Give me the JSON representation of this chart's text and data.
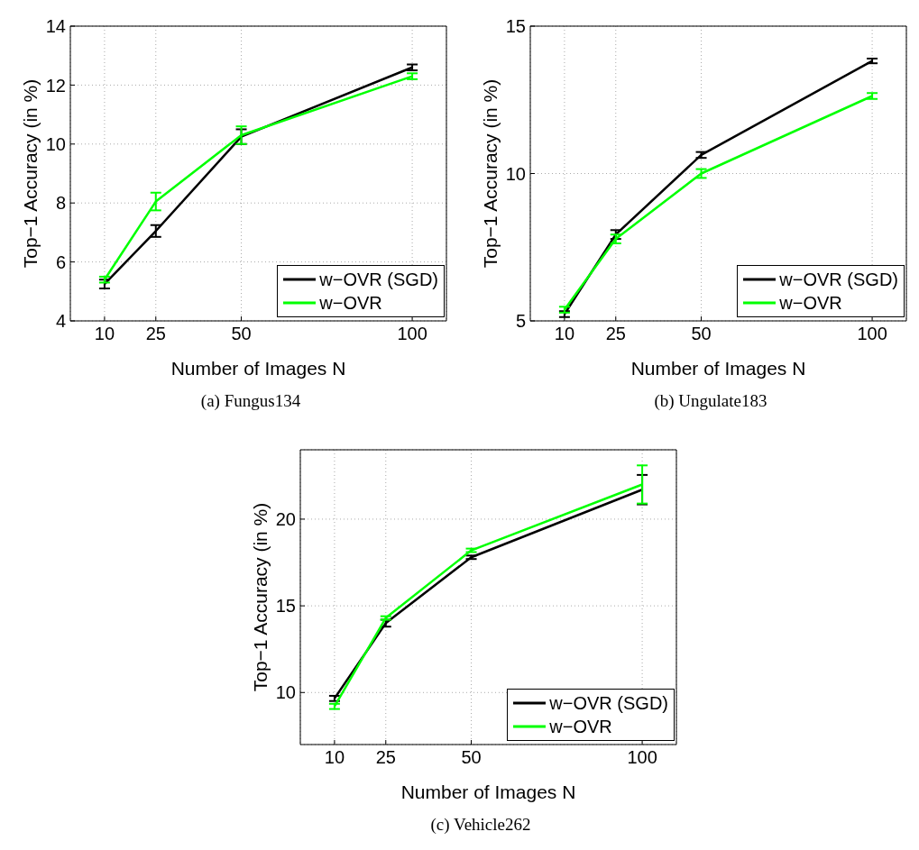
{
  "chart_data": [
    {
      "type": "line",
      "title": "(a)  Fungus134",
      "xlabel": "Number of Images N",
      "ylabel": "Top−1 Accuracy (in %)",
      "x": [
        10,
        25,
        50,
        100
      ],
      "xlim": [
        0,
        110
      ],
      "xticks": [
        10,
        25,
        50,
        100
      ],
      "ylim": [
        4,
        14
      ],
      "yticks": [
        4,
        6,
        8,
        10,
        12,
        14
      ],
      "grid": true,
      "legend": "bottom right",
      "marker": "none",
      "line_style": "solid",
      "series": [
        {
          "name": "w−OVR (SGD)",
          "color": "#000000",
          "values": [
            5.25,
            7.05,
            10.25,
            12.6
          ],
          "errors": [
            0.15,
            0.2,
            0.25,
            0.1
          ]
        },
        {
          "name": "w−OVR",
          "color": "#00ff00",
          "values": [
            5.4,
            8.05,
            10.3,
            12.3
          ],
          "errors": [
            0.1,
            0.3,
            0.3,
            0.1
          ]
        }
      ]
    },
    {
      "type": "line",
      "title": "(b)  Ungulate183",
      "xlabel": "Number of Images N",
      "ylabel": "Top−1 Accuracy (in %)",
      "x": [
        10,
        25,
        50,
        100
      ],
      "xlim": [
        0,
        110
      ],
      "xticks": [
        10,
        25,
        50,
        100
      ],
      "ylim": [
        5,
        15
      ],
      "yticks": [
        5,
        10,
        15
      ],
      "grid": true,
      "legend": "bottom right",
      "marker": "none",
      "line_style": "solid",
      "series": [
        {
          "name": "w−OVR (SGD)",
          "color": "#000000",
          "values": [
            5.23,
            7.93,
            10.63,
            13.82
          ],
          "errors": [
            0.1,
            0.15,
            0.1,
            0.08
          ]
        },
        {
          "name": "w−OVR",
          "color": "#00ff00",
          "values": [
            5.38,
            7.78,
            10.0,
            12.63
          ],
          "errors": [
            0.1,
            0.15,
            0.15,
            0.1
          ]
        }
      ]
    },
    {
      "type": "line",
      "title": "(c)  Vehicle262",
      "xlabel": "Number of Images N",
      "ylabel": "Top−1 Accuracy (in %)",
      "x": [
        10,
        25,
        50,
        100
      ],
      "xlim": [
        0,
        110
      ],
      "xticks": [
        10,
        25,
        50,
        100
      ],
      "ylim": [
        7,
        24
      ],
      "yticks": [
        10,
        15,
        20
      ],
      "grid": true,
      "legend": "bottom right",
      "marker": "none",
      "line_style": "solid",
      "series": [
        {
          "name": "w−OVR (SGD)",
          "color": "#000000",
          "values": [
            9.66,
            14.0,
            17.8,
            21.7
          ],
          "errors": [
            0.15,
            0.2,
            0.1,
            0.85
          ]
        },
        {
          "name": "w−OVR",
          "color": "#00ff00",
          "values": [
            9.2,
            14.3,
            18.2,
            22.0
          ],
          "errors": [
            0.15,
            0.1,
            0.1,
            1.1
          ]
        }
      ]
    }
  ]
}
